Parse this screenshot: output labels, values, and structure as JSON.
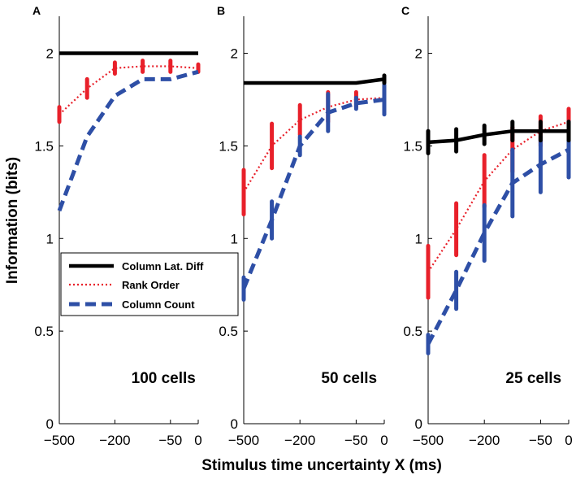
{
  "chart_data": {
    "type": "line",
    "xlabel": "Stimulus time uncertainty X (ms)",
    "ylabel": "Information (bits)",
    "x_tick_labels": [
      "−500",
      "−200",
      "−50",
      "0"
    ],
    "y_tick_labels": [
      "0",
      "0.5",
      "1",
      "1.5",
      "2"
    ],
    "ylim": [
      0,
      2.2
    ],
    "legend": {
      "placement": "center-left",
      "entries": [
        "Column Lat. Diff",
        "Rank Order",
        "Column Count"
      ]
    },
    "series_styles": {
      "Column Lat. Diff": {
        "color": "#000000",
        "dash": "solid"
      },
      "Rank Order": {
        "color": "#e8202a",
        "dash": "dotted"
      },
      "Column Count": {
        "color": "#2e4fa6",
        "dash": "dashed"
      }
    },
    "panels": [
      {
        "letter": "A",
        "annotation": "100 cells",
        "series": [
          {
            "name": "Column Lat. Diff",
            "values": [
              2.0,
              2.0,
              2.0,
              2.0,
              2.0,
              2.0
            ]
          },
          {
            "name": "Rank Order",
            "values": [
              1.67,
              1.81,
              1.92,
              1.93,
              1.93,
              1.92
            ],
            "err": [
              0.04,
              0.05,
              0.03,
              0.03,
              0.03,
              0.02
            ]
          },
          {
            "name": "Column Count",
            "values": [
              1.15,
              1.55,
              1.77,
              1.86,
              1.86,
              1.9
            ],
            "err": [
              0,
              0,
              0,
              0,
              0,
              0
            ]
          }
        ]
      },
      {
        "letter": "B",
        "annotation": "50 cells",
        "series": [
          {
            "name": "Column Lat. Diff",
            "values": [
              1.84,
              1.84,
              1.84,
              1.84,
              1.84,
              1.86
            ],
            "err": [
              0,
              0,
              0,
              0,
              0,
              0.02
            ]
          },
          {
            "name": "Rank Order",
            "values": [
              1.25,
              1.5,
              1.64,
              1.71,
              1.75,
              1.76
            ],
            "err": [
              0.12,
              0.12,
              0.08,
              0.08,
              0.04,
              0.04
            ]
          },
          {
            "name": "Column Count",
            "values": [
              0.73,
              1.1,
              1.5,
              1.68,
              1.73,
              1.75
            ],
            "err": [
              0.06,
              0.1,
              0.05,
              0.1,
              0.03,
              0.08
            ]
          }
        ]
      },
      {
        "letter": "C",
        "annotation": "25 cells",
        "series": [
          {
            "name": "Column Lat. Diff",
            "values": [
              1.52,
              1.53,
              1.56,
              1.58,
              1.58,
              1.58
            ],
            "err": [
              0.06,
              0.06,
              0.05,
              0.05,
              0.05,
              0.05
            ]
          },
          {
            "name": "Rank Order",
            "values": [
              0.82,
              1.05,
              1.31,
              1.48,
              1.58,
              1.63
            ],
            "err": [
              0.14,
              0.14,
              0.14,
              0.12,
              0.08,
              0.07
            ]
          },
          {
            "name": "Column Count",
            "values": [
              0.43,
              0.72,
              1.03,
              1.3,
              1.4,
              1.48
            ],
            "err": [
              0.05,
              0.1,
              0.15,
              0.18,
              0.15,
              0.15
            ]
          }
        ]
      }
    ]
  }
}
